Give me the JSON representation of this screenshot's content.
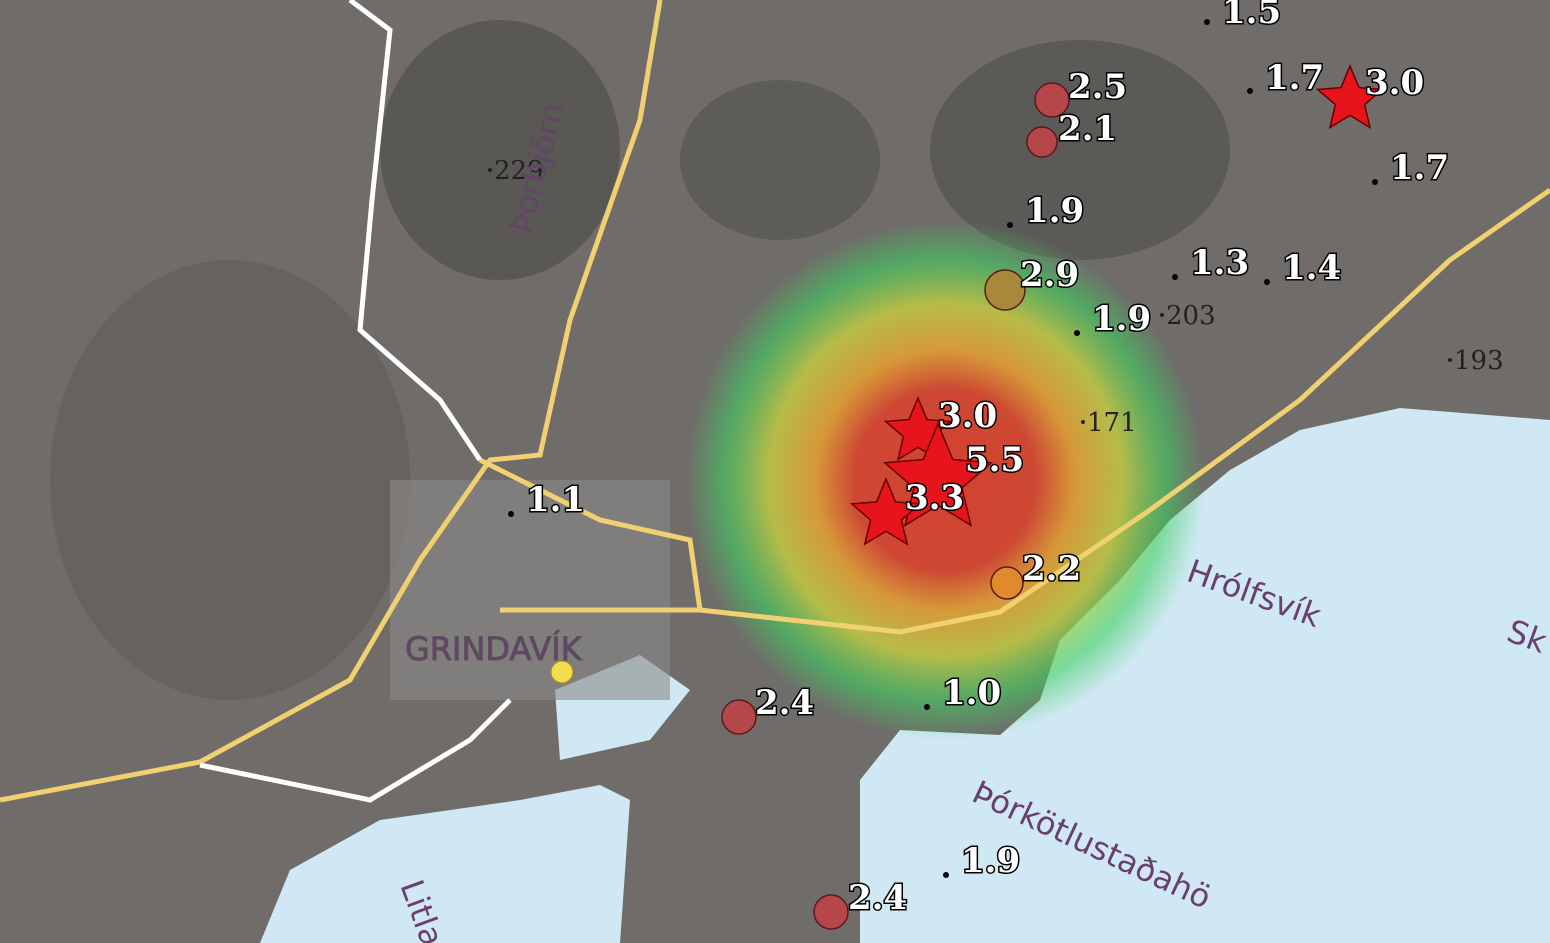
{
  "map": {
    "quakes": [
      {
        "label": "1.5",
        "marker": "dot"
      },
      {
        "label": "1.7",
        "marker": "dot"
      },
      {
        "label": "3.0",
        "marker": "star",
        "color": "#e8141c"
      },
      {
        "label": "2.5",
        "marker": "circle",
        "color": "#b5474a"
      },
      {
        "label": "2.1",
        "marker": "circle",
        "color": "#b5474a"
      },
      {
        "label": "1.7",
        "marker": "dot"
      },
      {
        "label": "1.9",
        "marker": "dot"
      },
      {
        "label": "2.9",
        "marker": "circle",
        "color": "#a8893c"
      },
      {
        "label": "1.3",
        "marker": "dot"
      },
      {
        "label": "1.4",
        "marker": "dot"
      },
      {
        "label": "1.9",
        "marker": "dot"
      },
      {
        "label": "3.0",
        "marker": "star",
        "color": "#e8141c"
      },
      {
        "label": "5.5",
        "marker": "star",
        "color": "#e8141c"
      },
      {
        "label": "3.3",
        "marker": "star",
        "color": "#e8141c"
      },
      {
        "label": "1.1",
        "marker": "dot"
      },
      {
        "label": "2.2",
        "marker": "circle",
        "color": "#e08a2c"
      },
      {
        "label": "2.4",
        "marker": "circle",
        "color": "#b5474a"
      },
      {
        "label": "1.0",
        "marker": "dot"
      },
      {
        "label": "1.9",
        "marker": "dot"
      },
      {
        "label": "2.4",
        "marker": "circle",
        "color": "#b5474a"
      }
    ],
    "elevations": [
      "229",
      "203",
      "193",
      "171"
    ],
    "places": [
      "Þorbjörn",
      "GRINDAVÍK",
      "Hrólfsvík",
      "Þórkötlustaðahö",
      "Litla",
      "Sk"
    ]
  }
}
